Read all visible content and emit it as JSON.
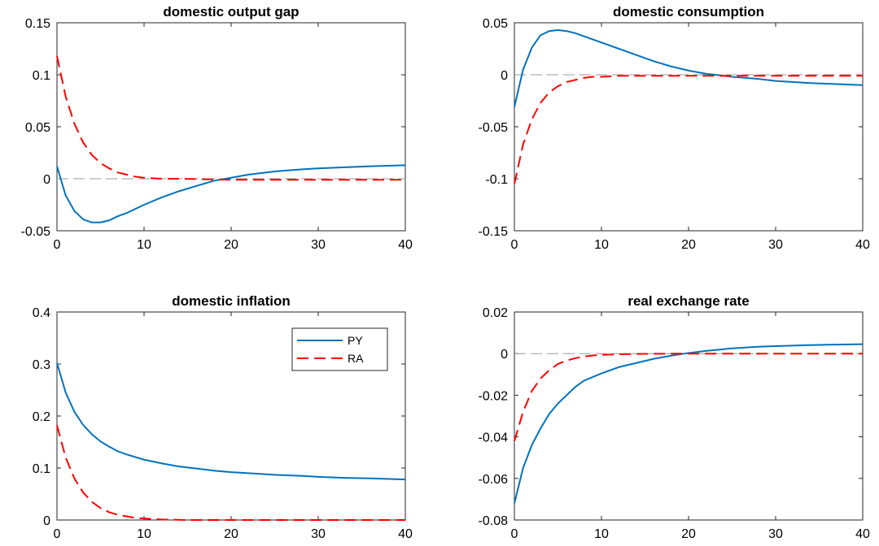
{
  "colors": {
    "py": "#0072BD",
    "ra": "#FF0000"
  },
  "legend": {
    "location": "north-east, inside domestic inflation panel",
    "entries": [
      "PY",
      "RA"
    ]
  },
  "chart_data": [
    {
      "type": "line",
      "title": "domestic output gap",
      "xlim": [
        0,
        40
      ],
      "ylim": [
        -0.05,
        0.15
      ],
      "xticks": [
        0,
        10,
        20,
        30,
        40
      ],
      "yticks": [
        -0.05,
        0,
        0.05,
        0.1,
        0.15
      ],
      "xtick_labels": [
        "0",
        "10",
        "20",
        "30",
        "40"
      ],
      "ytick_labels": [
        "-0.05",
        "0",
        "0.05",
        "0.1",
        "0.15"
      ],
      "reference_line": 0,
      "series": [
        {
          "name": "PY",
          "style": "solid",
          "x": [
            0,
            1,
            2,
            3,
            4,
            5,
            6,
            7,
            8,
            10,
            12,
            14,
            16,
            18,
            20,
            22,
            25,
            28,
            30,
            33,
            36,
            40
          ],
          "y": [
            0.012,
            -0.016,
            -0.031,
            -0.039,
            -0.042,
            -0.042,
            -0.04,
            -0.036,
            -0.033,
            -0.025,
            -0.018,
            -0.012,
            -0.007,
            -0.002,
            0.001,
            0.004,
            0.007,
            0.009,
            0.01,
            0.011,
            0.012,
            0.013
          ]
        },
        {
          "name": "RA",
          "style": "dashed",
          "x": [
            0,
            1,
            2,
            3,
            4,
            5,
            6,
            7,
            8,
            9,
            10,
            12,
            14,
            17,
            20,
            25,
            30,
            35,
            40
          ],
          "y": [
            0.118,
            0.079,
            0.053,
            0.035,
            0.023,
            0.015,
            0.01,
            0.006,
            0.004,
            0.002,
            0.001,
            0.0,
            0.0,
            -0.0005,
            -0.001,
            -0.001,
            -0.001,
            -0.001,
            -0.001
          ]
        }
      ]
    },
    {
      "type": "line",
      "title": "domestic consumption",
      "xlim": [
        0,
        40
      ],
      "ylim": [
        -0.15,
        0.05
      ],
      "xticks": [
        0,
        10,
        20,
        30,
        40
      ],
      "yticks": [
        -0.15,
        -0.1,
        -0.05,
        0,
        0.05
      ],
      "xtick_labels": [
        "0",
        "10",
        "20",
        "30",
        "40"
      ],
      "ytick_labels": [
        "-0.15",
        "-0.1",
        "-0.05",
        "0",
        "0.05"
      ],
      "reference_line": 0,
      "series": [
        {
          "name": "PY",
          "style": "solid",
          "x": [
            0,
            1,
            2,
            3,
            4,
            5,
            6,
            7,
            8,
            10,
            12,
            14,
            16,
            18,
            20,
            22,
            25,
            28,
            30,
            34,
            37,
            40
          ],
          "y": [
            -0.031,
            0.005,
            0.026,
            0.038,
            0.042,
            0.043,
            0.042,
            0.04,
            0.037,
            0.031,
            0.025,
            0.019,
            0.013,
            0.008,
            0.004,
            0.001,
            -0.002,
            -0.004,
            -0.006,
            -0.008,
            -0.009,
            -0.01
          ]
        },
        {
          "name": "RA",
          "style": "dashed",
          "x": [
            0,
            1,
            2,
            3,
            4,
            5,
            6,
            7,
            8,
            9,
            10,
            12,
            15,
            20,
            25,
            30,
            35,
            40
          ],
          "y": [
            -0.105,
            -0.067,
            -0.043,
            -0.027,
            -0.017,
            -0.011,
            -0.007,
            -0.005,
            -0.003,
            -0.002,
            -0.002,
            -0.001,
            -0.001,
            -0.001,
            -0.001,
            -0.001,
            -0.001,
            -0.001
          ]
        }
      ]
    },
    {
      "type": "line",
      "title": "domestic inflation",
      "xlim": [
        0,
        40
      ],
      "ylim": [
        0,
        0.4
      ],
      "xticks": [
        0,
        10,
        20,
        30,
        40
      ],
      "yticks": [
        0,
        0.1,
        0.2,
        0.3,
        0.4
      ],
      "xtick_labels": [
        "0",
        "10",
        "20",
        "30",
        "40"
      ],
      "ytick_labels": [
        "0",
        "0.1",
        "0.2",
        "0.3",
        "0.4"
      ],
      "series": [
        {
          "name": "PY",
          "style": "solid",
          "x": [
            0,
            1,
            2,
            3,
            4,
            5,
            6,
            7,
            8,
            10,
            12,
            14,
            16,
            18,
            20,
            22,
            25,
            28,
            30,
            33,
            36,
            40
          ],
          "y": [
            0.302,
            0.245,
            0.208,
            0.183,
            0.165,
            0.151,
            0.141,
            0.132,
            0.126,
            0.116,
            0.109,
            0.103,
            0.099,
            0.095,
            0.092,
            0.09,
            0.087,
            0.085,
            0.083,
            0.081,
            0.08,
            0.078
          ]
        },
        {
          "name": "RA",
          "style": "dashed",
          "x": [
            0,
            1,
            2,
            3,
            4,
            5,
            6,
            7,
            8,
            9,
            10,
            12,
            15,
            20,
            25,
            30,
            35,
            40
          ],
          "y": [
            0.182,
            0.12,
            0.08,
            0.053,
            0.035,
            0.023,
            0.015,
            0.01,
            0.007,
            0.004,
            0.003,
            0.001,
            0.0,
            0.0,
            0.0,
            0.0,
            0.0,
            0.0
          ]
        }
      ]
    },
    {
      "type": "line",
      "title": "real exchange rate",
      "xlim": [
        0,
        40
      ],
      "ylim": [
        -0.08,
        0.02
      ],
      "xticks": [
        0,
        10,
        20,
        30,
        40
      ],
      "yticks": [
        -0.08,
        -0.06,
        -0.04,
        -0.02,
        0,
        0.02
      ],
      "xtick_labels": [
        "0",
        "10",
        "20",
        "30",
        "40"
      ],
      "ytick_labels": [
        "-0.08",
        "-0.06",
        "-0.04",
        "-0.02",
        "0",
        "0.02"
      ],
      "reference_line": 0,
      "series": [
        {
          "name": "PY",
          "style": "solid",
          "x": [
            0,
            1,
            2,
            3,
            4,
            5,
            6,
            7,
            8,
            10,
            12,
            14,
            16,
            18,
            20,
            22,
            25,
            28,
            30,
            33,
            36,
            40
          ],
          "y": [
            -0.072,
            -0.055,
            -0.044,
            -0.036,
            -0.029,
            -0.024,
            -0.02,
            -0.016,
            -0.013,
            -0.0095,
            -0.0065,
            -0.0045,
            -0.0025,
            -0.001,
            0.0003,
            0.0013,
            0.0025,
            0.0033,
            0.0036,
            0.004,
            0.0043,
            0.0045
          ]
        },
        {
          "name": "RA",
          "style": "dashed",
          "x": [
            0,
            1,
            2,
            3,
            4,
            5,
            6,
            7,
            8,
            9,
            10,
            12,
            15,
            20,
            25,
            30,
            35,
            40
          ],
          "y": [
            -0.042,
            -0.028,
            -0.018,
            -0.012,
            -0.008,
            -0.005,
            -0.0033,
            -0.0022,
            -0.0014,
            -0.0009,
            -0.0006,
            -0.0003,
            -0.0001,
            0.0,
            0.0,
            0.0,
            0.0,
            0.0
          ]
        }
      ]
    }
  ]
}
